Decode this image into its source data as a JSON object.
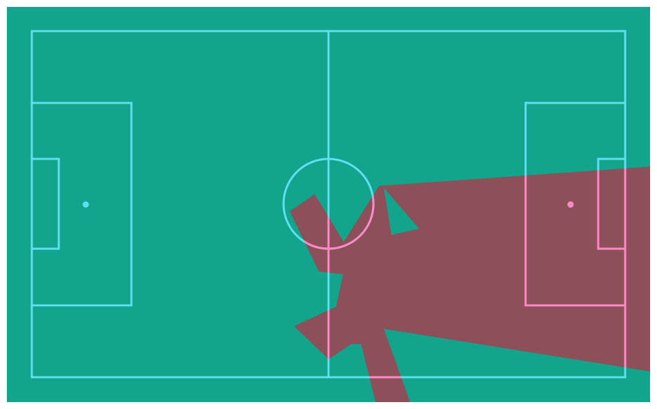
{
  "colors": {
    "background": "#ffffff",
    "pitch": "#12a48c",
    "line": "#5ee0f0",
    "line_in_zone": "#ff88c8",
    "zone": "#8e5058"
  }
}
